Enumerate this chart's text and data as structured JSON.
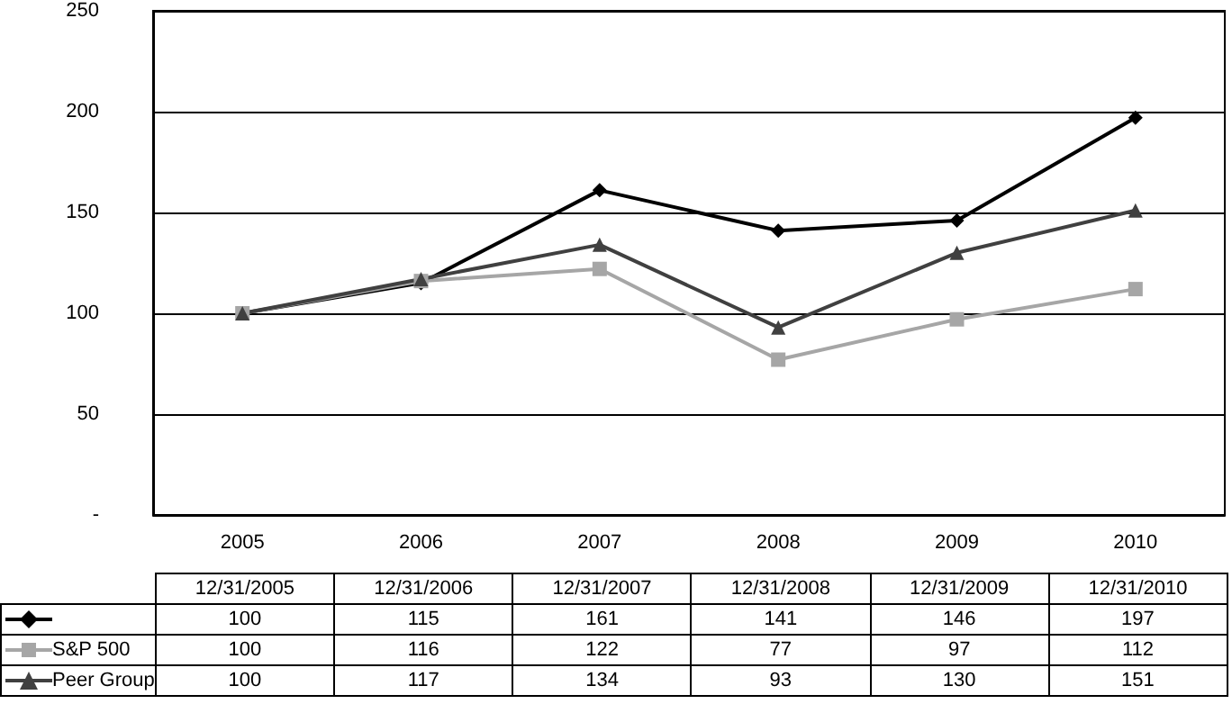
{
  "chart_data": {
    "type": "line",
    "categories": [
      "2005",
      "2006",
      "2007",
      "2008",
      "2009",
      "2010"
    ],
    "series": [
      {
        "color": "#000000",
        "marker": "diamond",
        "values": [
          100,
          115,
          161,
          141,
          146,
          197
        ]
      },
      {
        "name": "S&P 500",
        "color": "#a6a6a6",
        "marker": "square",
        "values": [
          100,
          116,
          122,
          77,
          97,
          112
        ]
      },
      {
        "name": "Peer Group",
        "color": "#404040",
        "marker": "triangle",
        "values": [
          100,
          117,
          134,
          93,
          130,
          151
        ]
      }
    ],
    "ylim": [
      0,
      250
    ],
    "yticks": [
      {
        "value": 0,
        "label": "-"
      },
      50,
      100,
      150,
      200,
      250
    ],
    "grid": "y",
    "legend": "bottom",
    "data_labels": true,
    "annotations": [
      "12/31/2005",
      "12/31/2006",
      "12/31/2007",
      "12/31/2008",
      "12/31/2009",
      "12/31/2010"
    ]
  }
}
